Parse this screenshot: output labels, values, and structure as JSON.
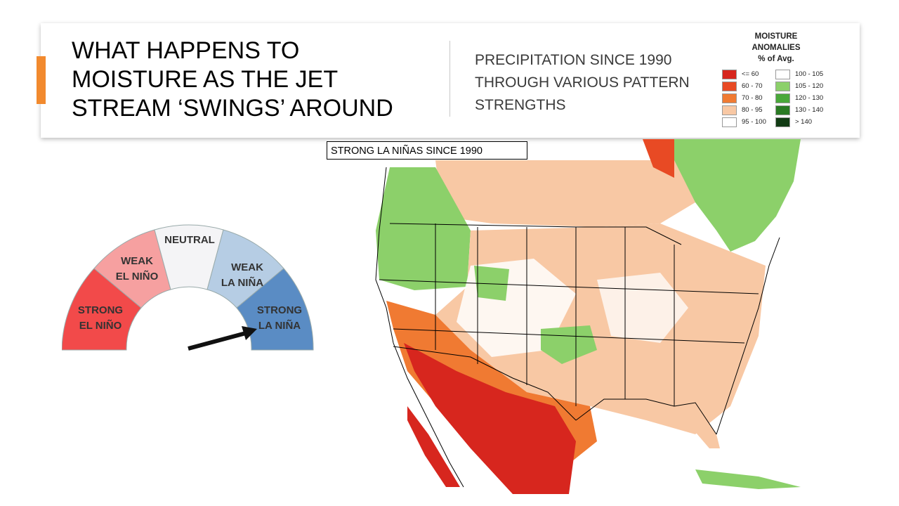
{
  "slide": {
    "title_lines": [
      "WHAT HAPPENS TO",
      "MOISTURE AS THE JET",
      "STREAM ‘SWINGS’ AROUND"
    ],
    "subtitle_lines": [
      "PRECIPITATION SINCE 1990",
      "THROUGH VARIOUS PATTERN",
      "STRENGTHS"
    ],
    "accent_color": "#f28a2e"
  },
  "legend": {
    "title_lines": [
      "MOISTURE",
      "ANOMALIES",
      "% of Avg."
    ],
    "items": [
      {
        "label": "<= 60",
        "color": "#d7261e"
      },
      {
        "label": "60 - 70",
        "color": "#e84a24"
      },
      {
        "label": "70 - 80",
        "color": "#f07a32"
      },
      {
        "label": "80 - 95",
        "color": "#f8c8a4"
      },
      {
        "label": "95 - 100",
        "color": "#ffffff"
      },
      {
        "label": "100 - 105",
        "color": "#ffffff"
      },
      {
        "label": "105 - 120",
        "color": "#8cd06a"
      },
      {
        "label": "120 - 130",
        "color": "#4aa83a"
      },
      {
        "label": "130 - 140",
        "color": "#2a7a24"
      },
      {
        "label": "> 140",
        "color": "#123c14"
      }
    ]
  },
  "map": {
    "label": "STRONG LA NIÑAS SINCE 1990"
  },
  "gauge": {
    "segments": [
      {
        "line1": "STRONG",
        "line2": "EL NIÑO",
        "color": "#f24a4a"
      },
      {
        "line1": "WEAK",
        "line2": "EL NIÑO",
        "color": "#f7a3a3"
      },
      {
        "line1": "NEUTRAL",
        "line2": "",
        "color": "#f4f4f6"
      },
      {
        "line1": "WEAK",
        "line2": "LA NIÑA",
        "color": "#b6cde4"
      },
      {
        "line1": "STRONG",
        "line2": "LA NIÑA",
        "color": "#5a8cc4"
      }
    ],
    "selected": "STRONG LA NIÑA"
  }
}
